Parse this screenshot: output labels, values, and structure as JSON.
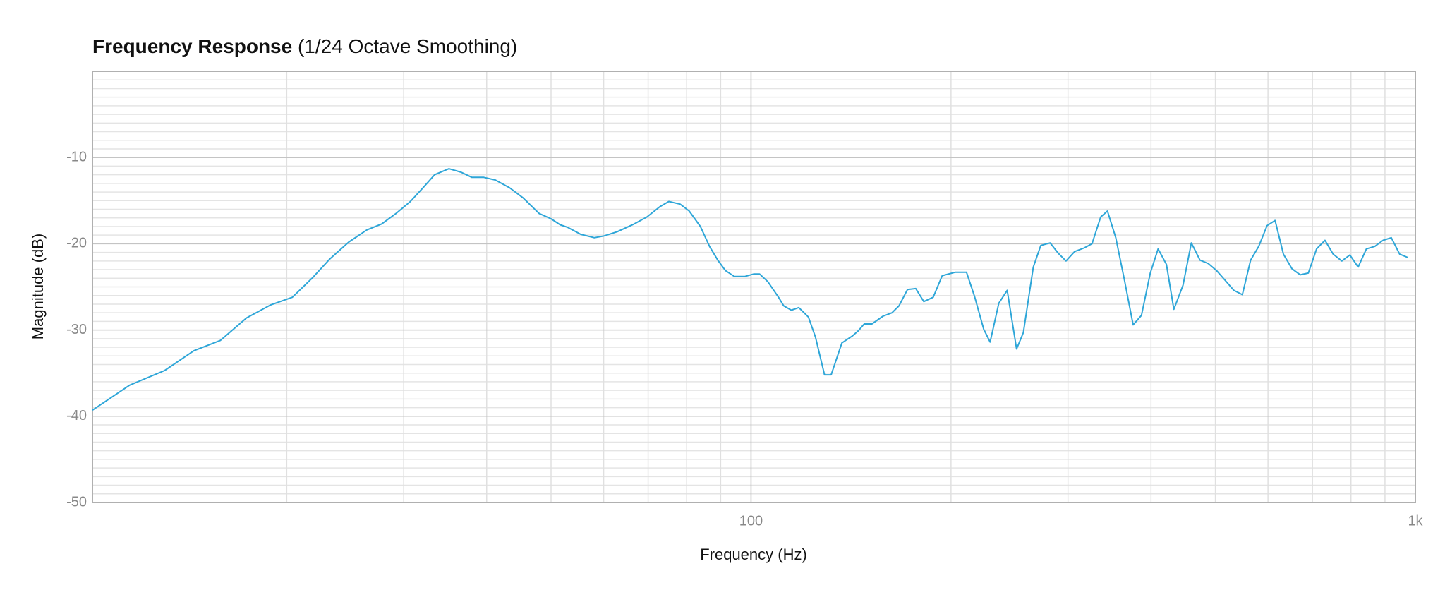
{
  "chart_data": {
    "type": "line",
    "title": "Frequency Response",
    "subtitle": "(1/24 Octave Smoothing)",
    "xlabel": "Frequency (Hz)",
    "ylabel": "Magnitude (dB)",
    "xscale": "log",
    "xlim": [
      10.2,
      1000
    ],
    "ylim": [
      -50,
      0
    ],
    "xticks": [
      100,
      {
        "value": 1000,
        "label": "1k"
      }
    ],
    "xminorticks": [
      20,
      30,
      40,
      50,
      60,
      70,
      80,
      90,
      200,
      300,
      400,
      500,
      600,
      700,
      800,
      900
    ],
    "yticks": [
      -50,
      -40,
      -30,
      -20,
      -10
    ],
    "yminorticks": [
      -49,
      -48,
      -47,
      -46,
      -45,
      -44,
      -43,
      -42,
      -41,
      -39,
      -38,
      -37,
      -36,
      -35,
      -34,
      -33,
      -32,
      -31,
      -29,
      -28,
      -27,
      -26,
      -25,
      -24,
      -23,
      -22,
      -21,
      -19,
      -18,
      -17,
      -16,
      -15,
      -14,
      -13,
      -12,
      -11,
      -9,
      -8,
      -7,
      -6,
      -5,
      -4,
      -3,
      -2,
      -1
    ],
    "grid": true,
    "x": [
      10.2,
      11.6,
      13.1,
      14.5,
      15.9,
      17.4,
      18.9,
      20.4,
      21.9,
      23.2,
      24.8,
      26.4,
      27.8,
      29.2,
      30.7,
      32.0,
      33.4,
      35.1,
      36.6,
      38.0,
      39.6,
      41.2,
      43.3,
      45.4,
      48.0,
      50.0,
      51.6,
      53.0,
      55.4,
      58.1,
      60.0,
      62.9,
      66.7,
      69.7,
      72.9,
      75.2,
      78.2,
      80.7,
      83.9,
      86.6,
      89.1,
      91.5,
      94.4,
      97.8,
      101,
      103,
      106,
      110,
      112,
      115,
      118,
      122,
      125,
      129,
      132,
      137,
      142,
      145,
      148,
      152,
      158,
      163,
      167,
      172,
      177,
      182,
      188,
      194,
      203,
      211,
      217,
      224,
      229,
      236,
      243,
      251,
      257,
      266,
      273,
      282,
      290,
      298,
      307,
      317,
      326,
      336,
      344,
      354,
      365,
      376,
      387,
      399,
      410,
      422,
      433,
      447,
      460,
      474,
      488,
      502,
      518,
      533,
      549,
      565,
      581,
      598,
      615,
      633,
      652,
      671,
      690,
      710,
      731,
      752,
      775,
      797,
      820,
      844,
      869,
      894,
      920,
      947,
      975
    ],
    "series": [
      {
        "name": "Magnitude",
        "color": "#2ea6d8",
        "values": [
          -39.3,
          -36.4,
          -34.7,
          -32.4,
          -31.2,
          -28.6,
          -27.1,
          -26.2,
          -23.9,
          -21.8,
          -19.8,
          -18.4,
          -17.7,
          -16.5,
          -15.1,
          -13.6,
          -12.0,
          -11.3,
          -11.7,
          -12.3,
          -12.3,
          -12.6,
          -13.5,
          -14.7,
          -16.5,
          -17.1,
          -17.8,
          -18.1,
          -18.9,
          -19.3,
          -19.1,
          -18.6,
          -17.7,
          -16.9,
          -15.7,
          -15.1,
          -15.4,
          -16.2,
          -18.0,
          -20.3,
          -21.9,
          -23.1,
          -23.8,
          -23.8,
          -23.5,
          -23.5,
          -24.4,
          -26.2,
          -27.2,
          -27.7,
          -27.4,
          -28.5,
          -30.8,
          -35.2,
          -35.2,
          -31.5,
          -30.7,
          -30.1,
          -29.3,
          -29.3,
          -28.4,
          -28.0,
          -27.2,
          -25.3,
          -25.2,
          -26.7,
          -26.2,
          -23.7,
          -23.3,
          -23.3,
          -26.1,
          -29.9,
          -31.4,
          -26.9,
          -25.4,
          -32.2,
          -30.3,
          -22.7,
          -20.2,
          -19.9,
          -21.1,
          -22.0,
          -20.9,
          -20.5,
          -20.0,
          -16.9,
          -16.2,
          -19.3,
          -24.3,
          -29.4,
          -28.3,
          -23.4,
          -20.6,
          -22.4,
          -27.6,
          -24.8,
          -19.9,
          -21.9,
          -22.3,
          -23.1,
          -24.3,
          -25.4,
          -25.9,
          -21.9,
          -20.3,
          -17.9,
          -17.3,
          -21.2,
          -22.9,
          -23.6,
          -23.4,
          -20.6,
          -19.6,
          -21.2,
          -22.0,
          -21.3,
          -22.7,
          -20.6,
          -20.3,
          -19.6,
          -19.3,
          -21.2,
          -21.6
        ]
      }
    ]
  }
}
